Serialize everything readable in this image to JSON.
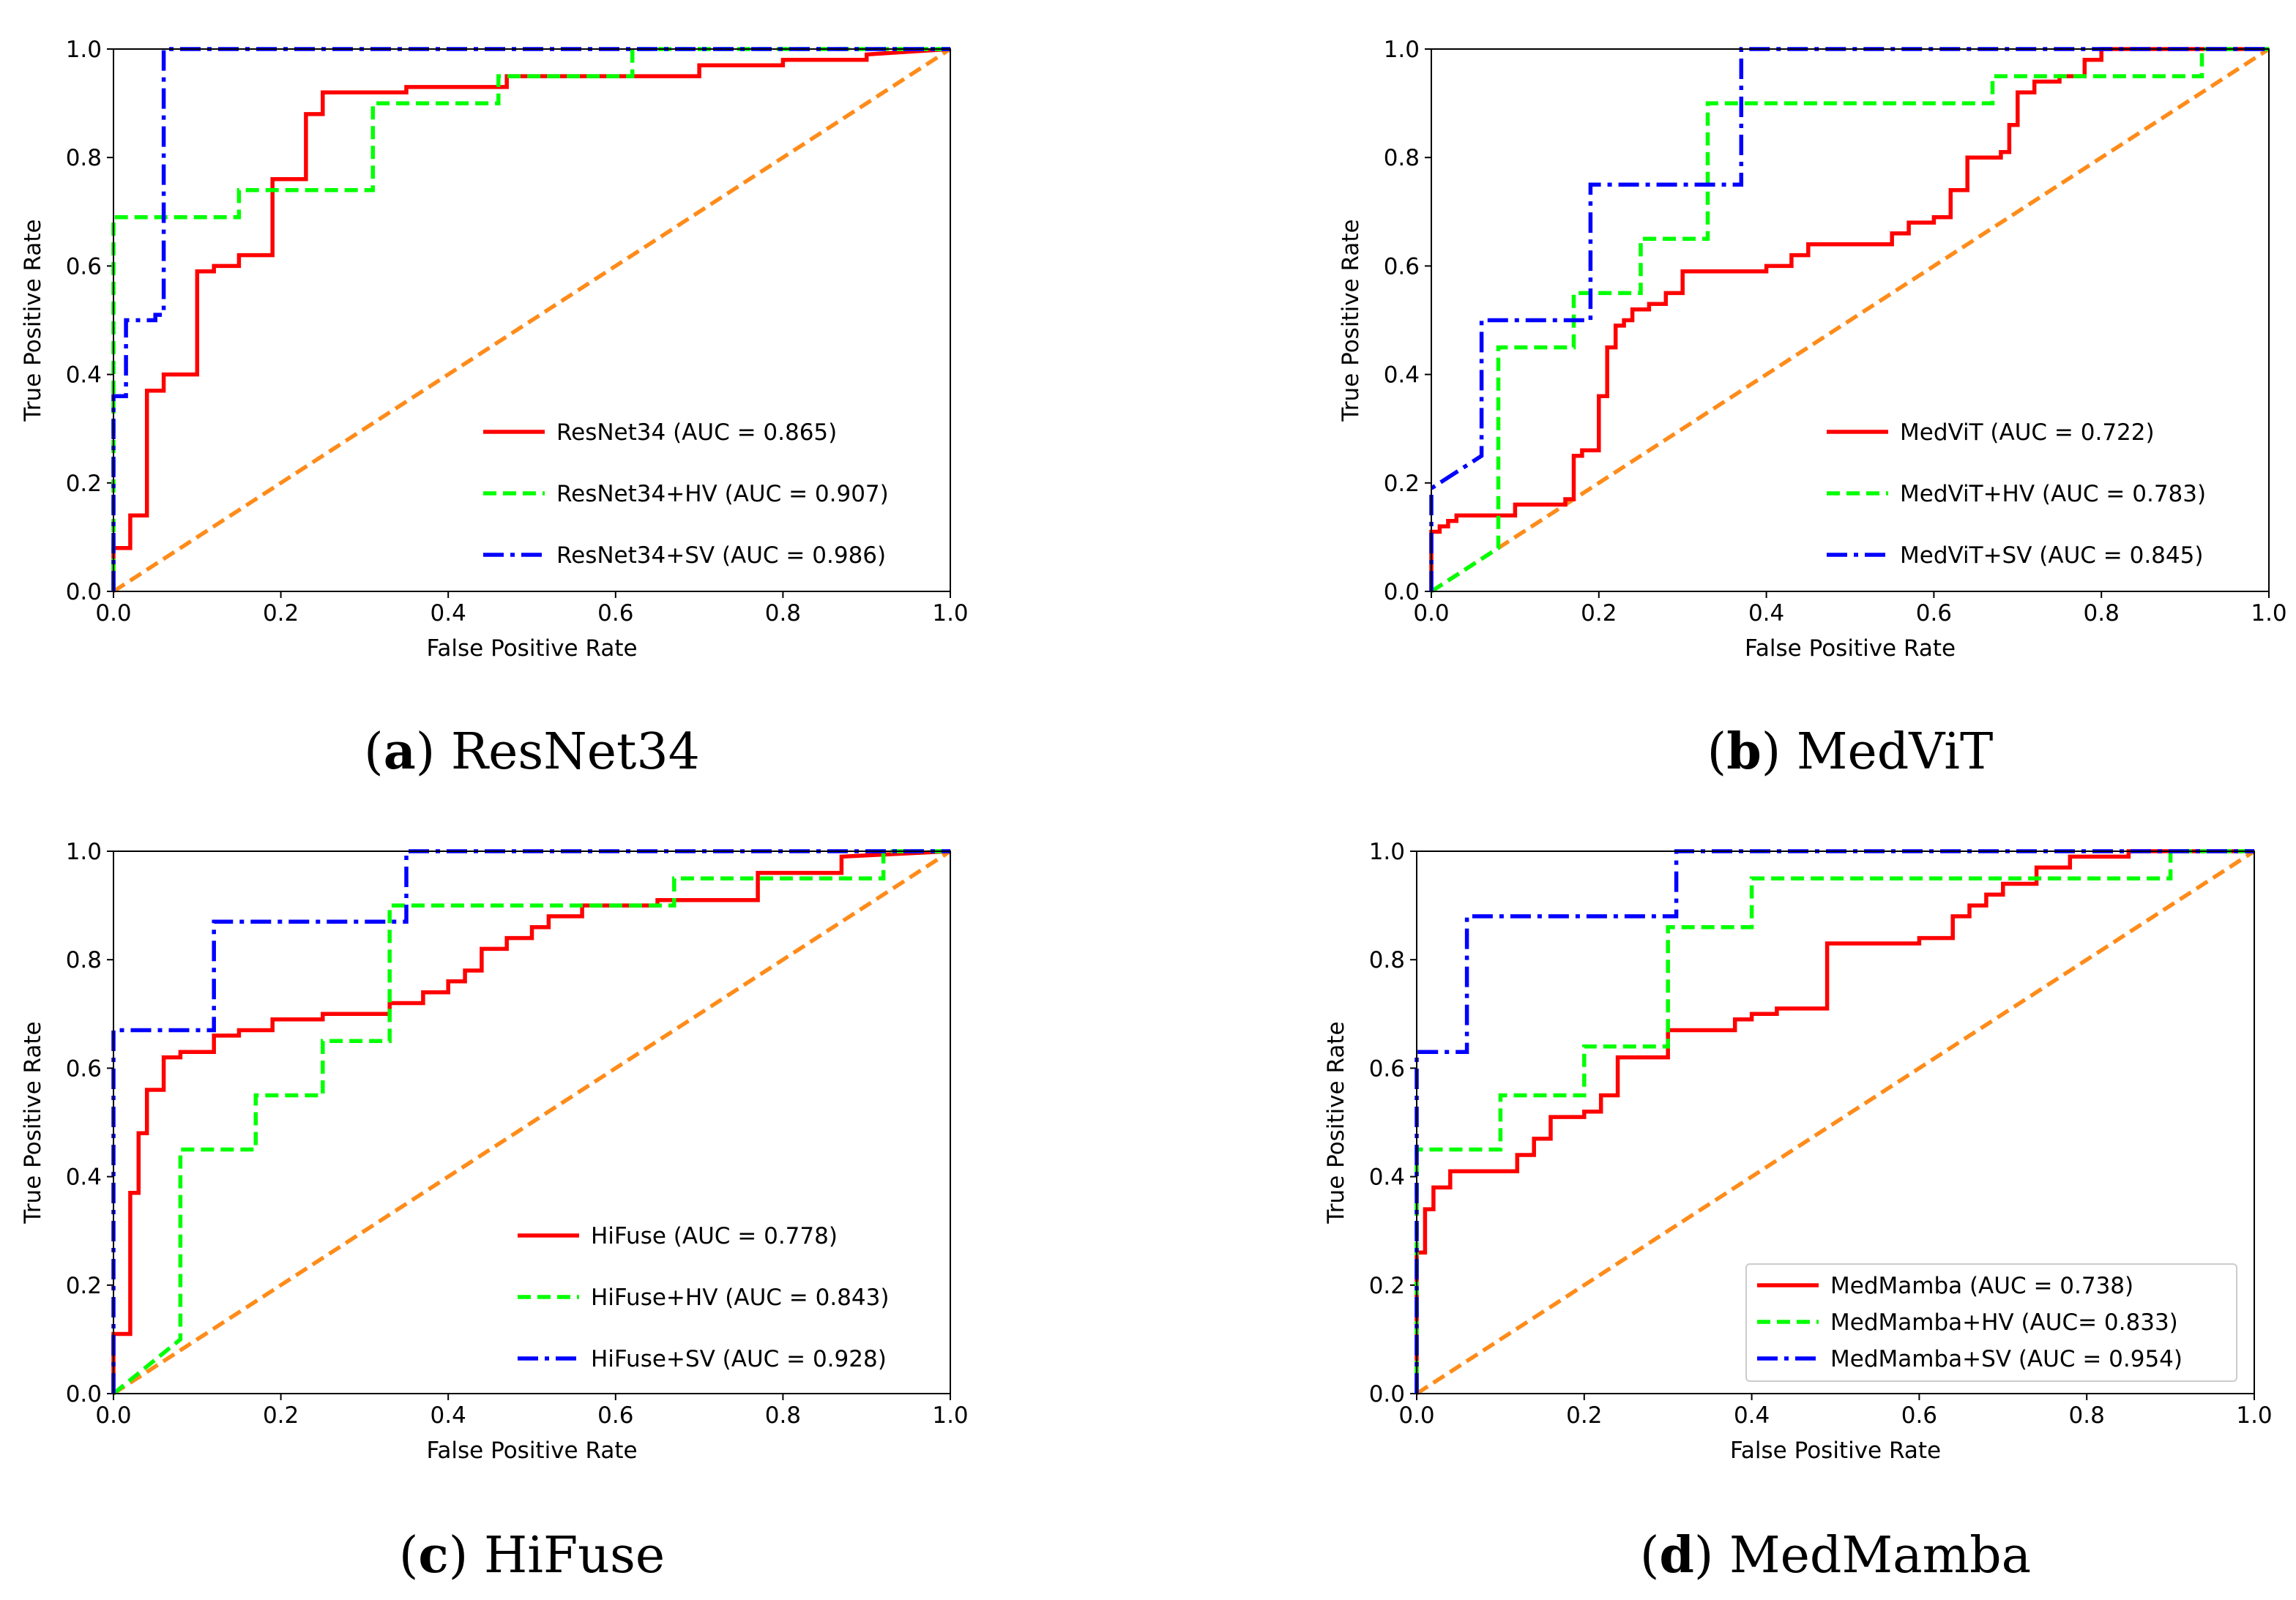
{
  "chart_data": [
    {
      "type": "line",
      "id": "a",
      "caption_letter": "a",
      "caption_text": "ResNet34",
      "xlabel": "False Positive Rate",
      "ylabel": "True Positive Rate",
      "xlim": [
        0,
        1
      ],
      "ylim": [
        0,
        1
      ],
      "xticks": [
        "0.0",
        "0.2",
        "0.4",
        "0.6",
        "0.8",
        "1.0"
      ],
      "yticks": [
        "0.0",
        "0.2",
        "0.4",
        "0.6",
        "0.8",
        "1.0"
      ],
      "legend_placement": "lower-right",
      "legend_frame": false,
      "series": [
        {
          "name": "ResNet34",
          "label": "ResNet34  (AUC = 0.865)",
          "color": "#ff0000",
          "style": "solid",
          "x": [
            0,
            0,
            0.02,
            0.02,
            0.04,
            0.04,
            0.06,
            0.06,
            0.1,
            0.1,
            0.12,
            0.12,
            0.15,
            0.15,
            0.19,
            0.19,
            0.23,
            0.23,
            0.25,
            0.25,
            0.35,
            0.35,
            0.47,
            0.47,
            0.7,
            0.7,
            0.8,
            0.8,
            0.9,
            0.9,
            1.0
          ],
          "y": [
            0,
            0.08,
            0.08,
            0.14,
            0.14,
            0.37,
            0.37,
            0.4,
            0.4,
            0.59,
            0.59,
            0.6,
            0.6,
            0.62,
            0.62,
            0.76,
            0.76,
            0.88,
            0.88,
            0.92,
            0.92,
            0.93,
            0.93,
            0.95,
            0.95,
            0.97,
            0.97,
            0.98,
            0.98,
            0.99,
            1.0
          ]
        },
        {
          "name": "ResNet34+HV",
          "label": "ResNet34+HV  (AUC = 0.907)",
          "color": "#00ff00",
          "style": "dashed",
          "x": [
            0,
            0,
            0.15,
            0.15,
            0.31,
            0.31,
            0.46,
            0.46,
            0.62,
            0.62,
            1.0
          ],
          "y": [
            0,
            0.69,
            0.69,
            0.74,
            0.74,
            0.9,
            0.9,
            0.95,
            0.95,
            1.0,
            1.0
          ]
        },
        {
          "name": "ResNet34+SV",
          "label": "ResNet34+SV  (AUC = 0.986)",
          "color": "#0000ff",
          "style": "dashdot",
          "x": [
            0,
            0,
            0.015,
            0.015,
            0.05,
            0.05,
            0.06,
            0.06,
            1.0
          ],
          "y": [
            0,
            0.36,
            0.36,
            0.5,
            0.5,
            0.51,
            0.51,
            1.0,
            1.0
          ]
        },
        {
          "name": "Chance",
          "label": "",
          "color": "#ff8c1a",
          "style": "dashed",
          "x": [
            0,
            1
          ],
          "y": [
            0,
            1
          ]
        }
      ]
    },
    {
      "type": "line",
      "id": "b",
      "caption_letter": "b",
      "caption_text": "MedViT",
      "xlabel": "False Positive Rate",
      "ylabel": "True Positive Rate",
      "xlim": [
        0,
        1
      ],
      "ylim": [
        0,
        1
      ],
      "xticks": [
        "0.0",
        "0.2",
        "0.4",
        "0.6",
        "0.8",
        "1.0"
      ],
      "yticks": [
        "0.0",
        "0.2",
        "0.4",
        "0.6",
        "0.8",
        "1.0"
      ],
      "legend_placement": "lower-right",
      "legend_frame": false,
      "series": [
        {
          "name": "MedViT",
          "label": "MedViT  (AUC = 0.722)",
          "color": "#ff0000",
          "style": "solid",
          "x": [
            0,
            0,
            0.01,
            0.01,
            0.02,
            0.02,
            0.03,
            0.03,
            0.1,
            0.1,
            0.16,
            0.16,
            0.17,
            0.17,
            0.18,
            0.18,
            0.2,
            0.2,
            0.21,
            0.21,
            0.22,
            0.22,
            0.23,
            0.23,
            0.24,
            0.24,
            0.26,
            0.26,
            0.28,
            0.28,
            0.3,
            0.3,
            0.4,
            0.4,
            0.43,
            0.43,
            0.45,
            0.45,
            0.55,
            0.55,
            0.57,
            0.57,
            0.6,
            0.6,
            0.62,
            0.62,
            0.64,
            0.64,
            0.68,
            0.68,
            0.69,
            0.69,
            0.7,
            0.7,
            0.72,
            0.72,
            0.75,
            0.75,
            0.78,
            0.78,
            0.8,
            0.8,
            1.0
          ],
          "y": [
            0,
            0.11,
            0.11,
            0.12,
            0.12,
            0.13,
            0.13,
            0.14,
            0.14,
            0.16,
            0.16,
            0.17,
            0.17,
            0.25,
            0.25,
            0.26,
            0.26,
            0.36,
            0.36,
            0.45,
            0.45,
            0.49,
            0.49,
            0.5,
            0.5,
            0.52,
            0.52,
            0.53,
            0.53,
            0.55,
            0.55,
            0.59,
            0.59,
            0.6,
            0.6,
            0.62,
            0.62,
            0.64,
            0.64,
            0.66,
            0.66,
            0.68,
            0.68,
            0.69,
            0.69,
            0.74,
            0.74,
            0.8,
            0.8,
            0.81,
            0.81,
            0.86,
            0.86,
            0.92,
            0.92,
            0.94,
            0.94,
            0.95,
            0.95,
            0.98,
            0.98,
            1.0,
            1.0
          ]
        },
        {
          "name": "MedViT+HV",
          "label": "MedViT+HV  (AUC = 0.783)",
          "color": "#00ff00",
          "style": "dashed",
          "x": [
            0,
            0.08,
            0.08,
            0.17,
            0.17,
            0.25,
            0.25,
            0.33,
            0.33,
            0.67,
            0.67,
            0.92,
            0.92,
            1.0
          ],
          "y": [
            0,
            0.08,
            0.45,
            0.45,
            0.55,
            0.55,
            0.65,
            0.65,
            0.9,
            0.9,
            0.95,
            0.95,
            1.0,
            1.0
          ]
        },
        {
          "name": "MedViT+SV",
          "label": "MedViT+SV  (AUC = 0.845)",
          "color": "#0000ff",
          "style": "dashdot",
          "x": [
            0,
            0,
            0.06,
            0.06,
            0.19,
            0.19,
            0.37,
            0.37,
            1.0
          ],
          "y": [
            0,
            0.19,
            0.25,
            0.5,
            0.5,
            0.75,
            0.75,
            1.0,
            1.0
          ]
        },
        {
          "name": "Chance",
          "label": "",
          "color": "#ff8c1a",
          "style": "dashed",
          "x": [
            0,
            1
          ],
          "y": [
            0,
            1
          ]
        }
      ]
    },
    {
      "type": "line",
      "id": "c",
      "caption_letter": "c",
      "caption_text": "HiFuse",
      "xlabel": "False Positive Rate",
      "ylabel": "True Positive Rate",
      "xlim": [
        0,
        1
      ],
      "ylim": [
        0,
        1
      ],
      "xticks": [
        "0.0",
        "0.2",
        "0.4",
        "0.6",
        "0.8",
        "1.0"
      ],
      "yticks": [
        "0.0",
        "0.2",
        "0.4",
        "0.6",
        "0.8",
        "1.0"
      ],
      "legend_placement": "lower-right",
      "legend_frame": false,
      "series": [
        {
          "name": "HiFuse",
          "label": "HiFuse  (AUC = 0.778)",
          "color": "#ff0000",
          "style": "solid",
          "x": [
            0,
            0,
            0.02,
            0.02,
            0.03,
            0.03,
            0.04,
            0.04,
            0.06,
            0.06,
            0.08,
            0.08,
            0.12,
            0.12,
            0.15,
            0.15,
            0.19,
            0.19,
            0.25,
            0.25,
            0.33,
            0.33,
            0.37,
            0.37,
            0.4,
            0.4,
            0.42,
            0.42,
            0.44,
            0.44,
            0.47,
            0.47,
            0.5,
            0.5,
            0.52,
            0.52,
            0.56,
            0.56,
            0.65,
            0.65,
            0.77,
            0.77,
            0.87,
            0.87,
            1.0
          ],
          "y": [
            0,
            0.11,
            0.11,
            0.37,
            0.37,
            0.48,
            0.48,
            0.56,
            0.56,
            0.62,
            0.62,
            0.63,
            0.63,
            0.66,
            0.66,
            0.67,
            0.67,
            0.69,
            0.69,
            0.7,
            0.7,
            0.72,
            0.72,
            0.74,
            0.74,
            0.76,
            0.76,
            0.78,
            0.78,
            0.82,
            0.82,
            0.84,
            0.84,
            0.86,
            0.86,
            0.88,
            0.88,
            0.9,
            0.9,
            0.91,
            0.91,
            0.96,
            0.96,
            0.99,
            1.0
          ]
        },
        {
          "name": "HiFuse+HV",
          "label": "HiFuse+HV  (AUC = 0.843)",
          "color": "#00ff00",
          "style": "dashed",
          "x": [
            0,
            0.08,
            0.08,
            0.17,
            0.17,
            0.25,
            0.25,
            0.33,
            0.33,
            0.67,
            0.67,
            0.92,
            0.92,
            1.0
          ],
          "y": [
            0,
            0.1,
            0.45,
            0.45,
            0.55,
            0.55,
            0.65,
            0.65,
            0.9,
            0.9,
            0.95,
            0.95,
            1.0,
            1.0
          ]
        },
        {
          "name": "HiFuse+SV",
          "label": "HiFuse+SV  (AUC = 0.928)",
          "color": "#0000ff",
          "style": "dashdot",
          "x": [
            0,
            0,
            0.12,
            0.12,
            0.35,
            0.35,
            1.0
          ],
          "y": [
            0,
            0.67,
            0.67,
            0.87,
            0.87,
            1.0,
            1.0
          ]
        },
        {
          "name": "Chance",
          "label": "",
          "color": "#ff8c1a",
          "style": "dashed",
          "x": [
            0,
            1
          ],
          "y": [
            0,
            1
          ]
        }
      ]
    },
    {
      "type": "line",
      "id": "d",
      "caption_letter": "d",
      "caption_text": "MedMamba",
      "xlabel": "False Positive Rate",
      "ylabel": "True Positive Rate",
      "xlim": [
        0,
        1
      ],
      "ylim": [
        0,
        1
      ],
      "xticks": [
        "0.0",
        "0.2",
        "0.4",
        "0.6",
        "0.8",
        "1.0"
      ],
      "yticks": [
        "0.0",
        "0.2",
        "0.4",
        "0.6",
        "0.8",
        "1.0"
      ],
      "legend_placement": "lower-right",
      "legend_frame": true,
      "series": [
        {
          "name": "MedMamba",
          "label": "MedMamba  (AUC = 0.738)",
          "color": "#ff0000",
          "style": "solid",
          "x": [
            0,
            0,
            0.01,
            0.01,
            0.02,
            0.02,
            0.04,
            0.04,
            0.06,
            0.06,
            0.12,
            0.12,
            0.14,
            0.14,
            0.16,
            0.16,
            0.2,
            0.2,
            0.22,
            0.22,
            0.24,
            0.24,
            0.26,
            0.26,
            0.3,
            0.3,
            0.38,
            0.38,
            0.4,
            0.4,
            0.43,
            0.43,
            0.49,
            0.49,
            0.6,
            0.6,
            0.64,
            0.64,
            0.66,
            0.66,
            0.68,
            0.68,
            0.7,
            0.7,
            0.74,
            0.74,
            0.78,
            0.78,
            0.85,
            0.85,
            1.0
          ],
          "y": [
            0,
            0.26,
            0.26,
            0.34,
            0.34,
            0.38,
            0.38,
            0.41,
            0.41,
            0.41,
            0.41,
            0.44,
            0.44,
            0.47,
            0.47,
            0.51,
            0.51,
            0.52,
            0.52,
            0.55,
            0.55,
            0.62,
            0.62,
            0.62,
            0.62,
            0.67,
            0.67,
            0.69,
            0.69,
            0.7,
            0.7,
            0.71,
            0.71,
            0.83,
            0.83,
            0.84,
            0.84,
            0.88,
            0.88,
            0.9,
            0.9,
            0.92,
            0.92,
            0.94,
            0.94,
            0.97,
            0.97,
            0.99,
            0.99,
            1.0,
            1.0
          ]
        },
        {
          "name": "MedMamba+HV",
          "label": "MedMamba+HV  (AUC= 0.833)",
          "color": "#00ff00",
          "style": "dashed",
          "x": [
            0,
            0,
            0.1,
            0.1,
            0.2,
            0.2,
            0.3,
            0.3,
            0.4,
            0.4,
            0.9,
            0.9,
            1.0
          ],
          "y": [
            0,
            0.45,
            0.45,
            0.55,
            0.55,
            0.64,
            0.64,
            0.86,
            0.86,
            0.95,
            0.95,
            1.0,
            1.0
          ]
        },
        {
          "name": "MedMamba+SV",
          "label": "MedMamba+SV  (AUC = 0.954)",
          "color": "#0000ff",
          "style": "dashdot",
          "x": [
            0,
            0,
            0.06,
            0.06,
            0.31,
            0.31,
            1.0
          ],
          "y": [
            0,
            0.63,
            0.63,
            0.88,
            0.88,
            1.0,
            1.0
          ]
        },
        {
          "name": "Chance",
          "label": "",
          "color": "#ff8c1a",
          "style": "dashed",
          "x": [
            0,
            1
          ],
          "y": [
            0,
            1
          ]
        }
      ]
    }
  ]
}
